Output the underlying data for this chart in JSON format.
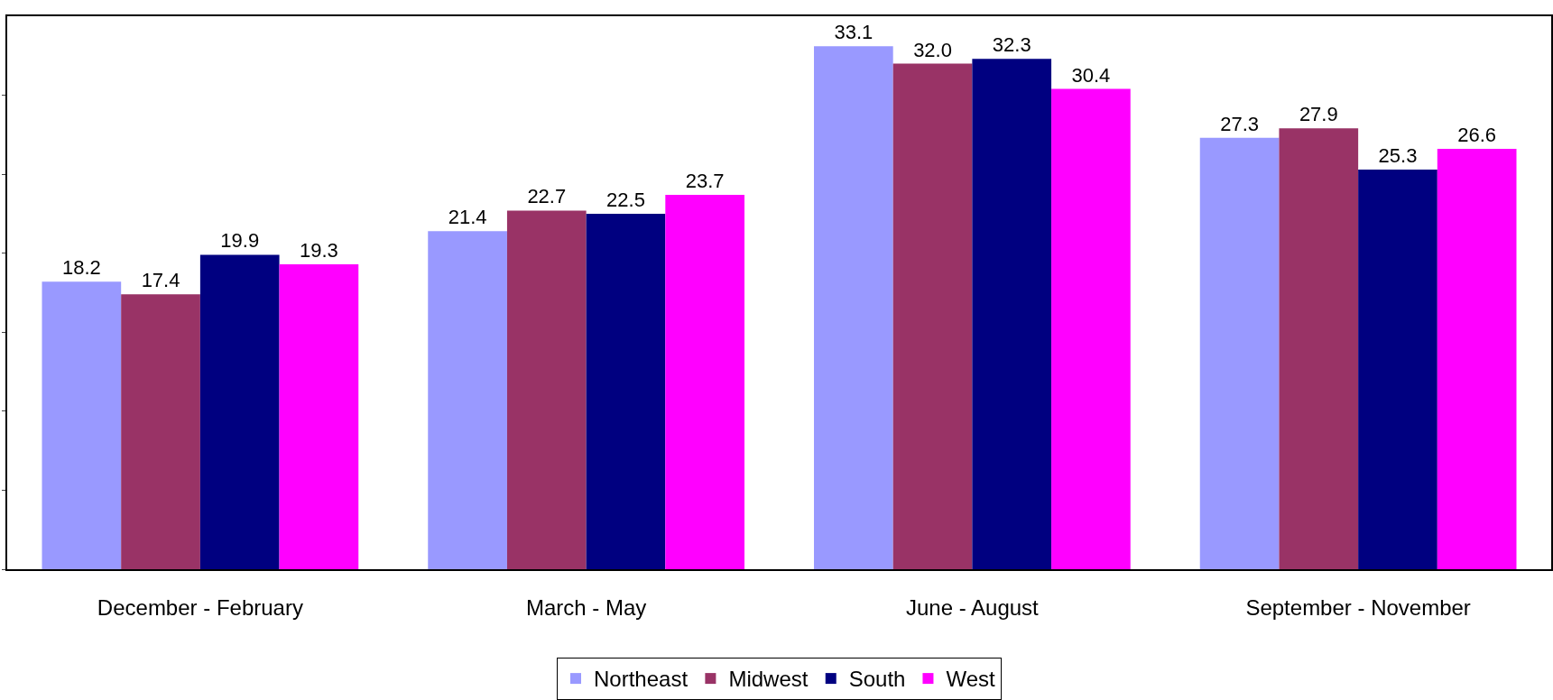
{
  "chart_data": {
    "type": "bar",
    "categories": [
      "December - February",
      "March - May",
      "June - August",
      "September - November"
    ],
    "series": [
      {
        "name": "Northeast",
        "color": "#9999ff",
        "values": [
          18.2,
          21.4,
          33.1,
          27.3
        ],
        "value_labels": [
          "18.2",
          "21.4",
          "33.1",
          "27.3"
        ]
      },
      {
        "name": "Midwest",
        "color": "#993366",
        "values": [
          17.4,
          22.7,
          32.0,
          27.9
        ],
        "value_labels": [
          "17.4",
          "22.7",
          "32.0",
          "27.9"
        ]
      },
      {
        "name": "South",
        "color": "#000080",
        "values": [
          19.9,
          22.5,
          32.3,
          25.3
        ],
        "value_labels": [
          "19.9",
          "22.5",
          "32.3",
          "25.3"
        ]
      },
      {
        "name": "West",
        "color": "#ff00ff",
        "values": [
          19.3,
          23.7,
          30.4,
          26.6
        ],
        "value_labels": [
          "19.3",
          "23.7",
          "30.4",
          "26.6"
        ]
      }
    ],
    "ylim": [
      0,
      35
    ],
    "yticks": [
      {
        "value": 0,
        "label": null
      },
      {
        "value": 5,
        "label": null
      },
      {
        "value": 10,
        "label": null
      },
      {
        "value": 15,
        "label": null
      },
      {
        "value": 20,
        "label": null
      },
      {
        "value": 25,
        "label": null
      },
      {
        "value": 30,
        "label": null
      }
    ],
    "tick_labels": "x",
    "legend": "bottom"
  }
}
